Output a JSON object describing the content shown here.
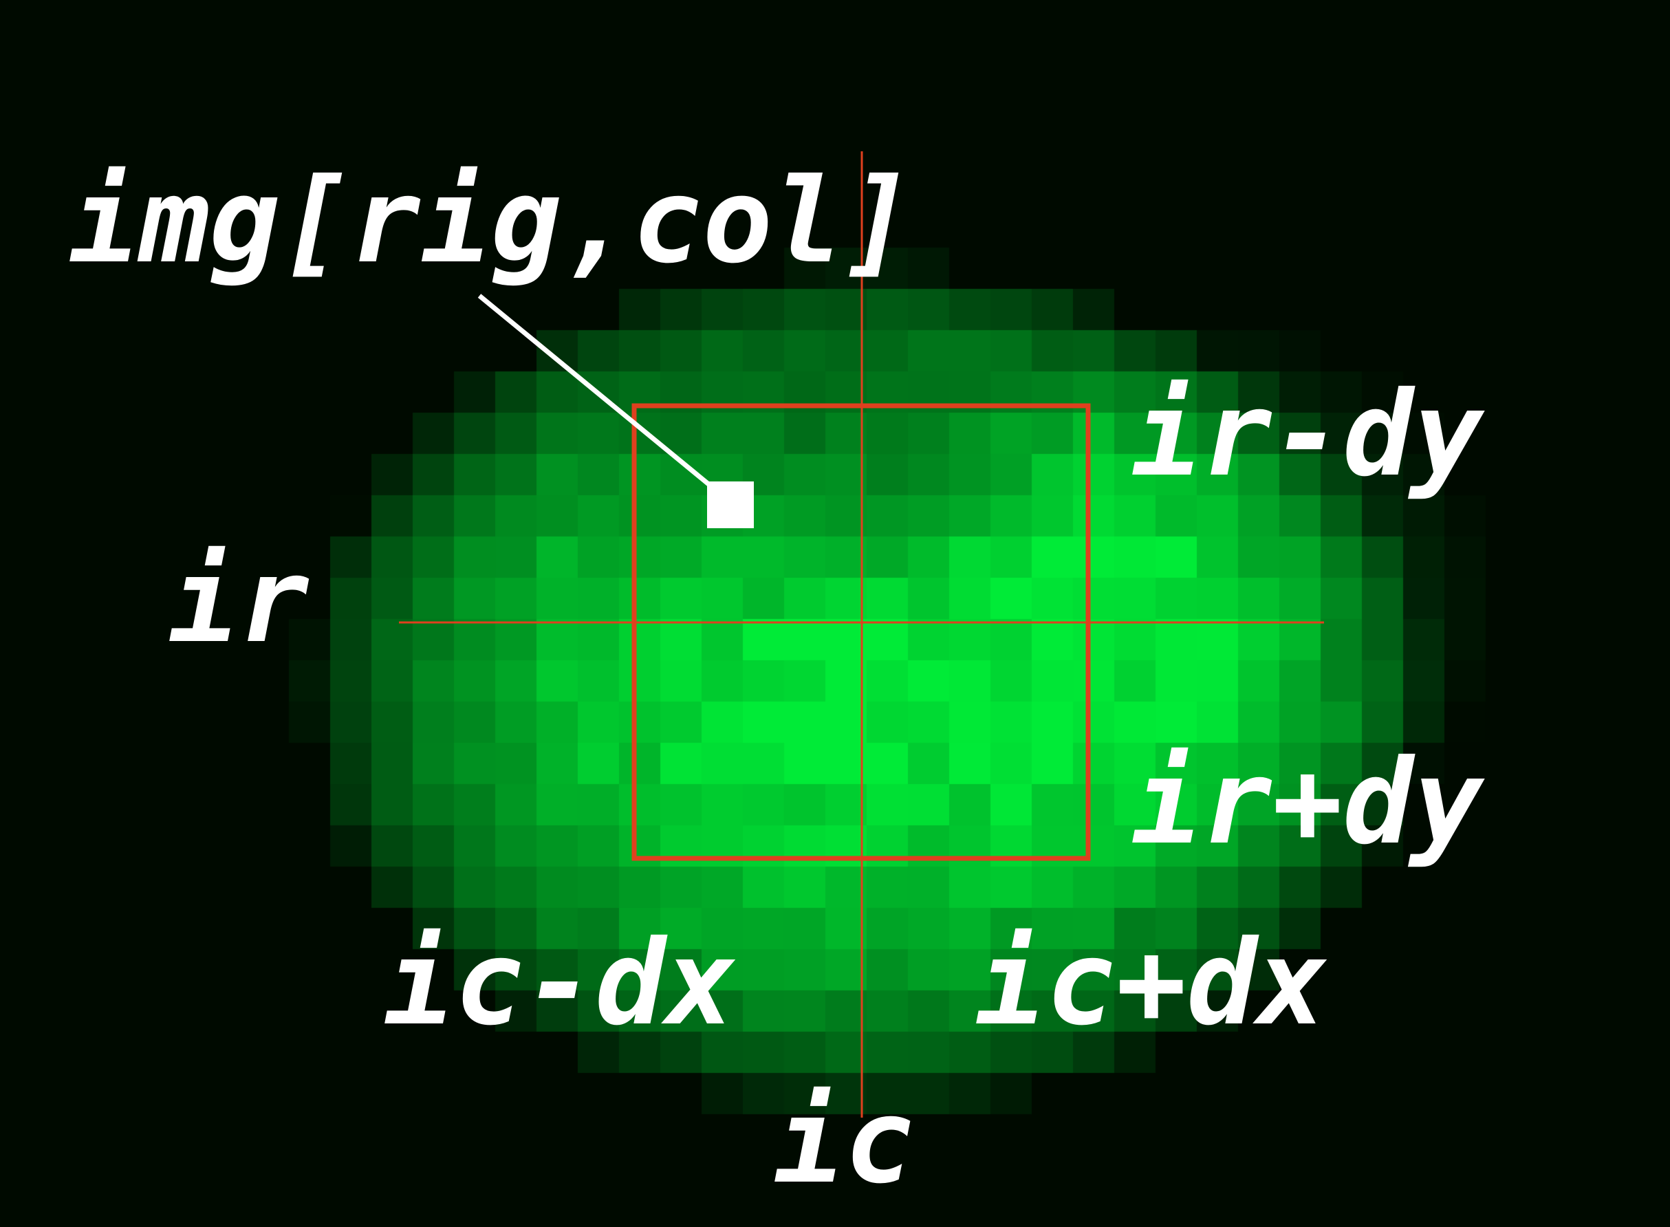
{
  "image": {
    "description_colors": {
      "background": "#000000",
      "blob": "#00e632",
      "crosshair": "#e0401e",
      "window_box": "#e0401e",
      "annotation": "#ffffff"
    }
  },
  "labels": {
    "pixel": "img[rig,col]",
    "row_minus": "ir-dy",
    "row": "ir",
    "row_plus": "ir+dy",
    "col_minus": "ic-dx",
    "col_plus": "ic+dx",
    "col": "ic"
  }
}
